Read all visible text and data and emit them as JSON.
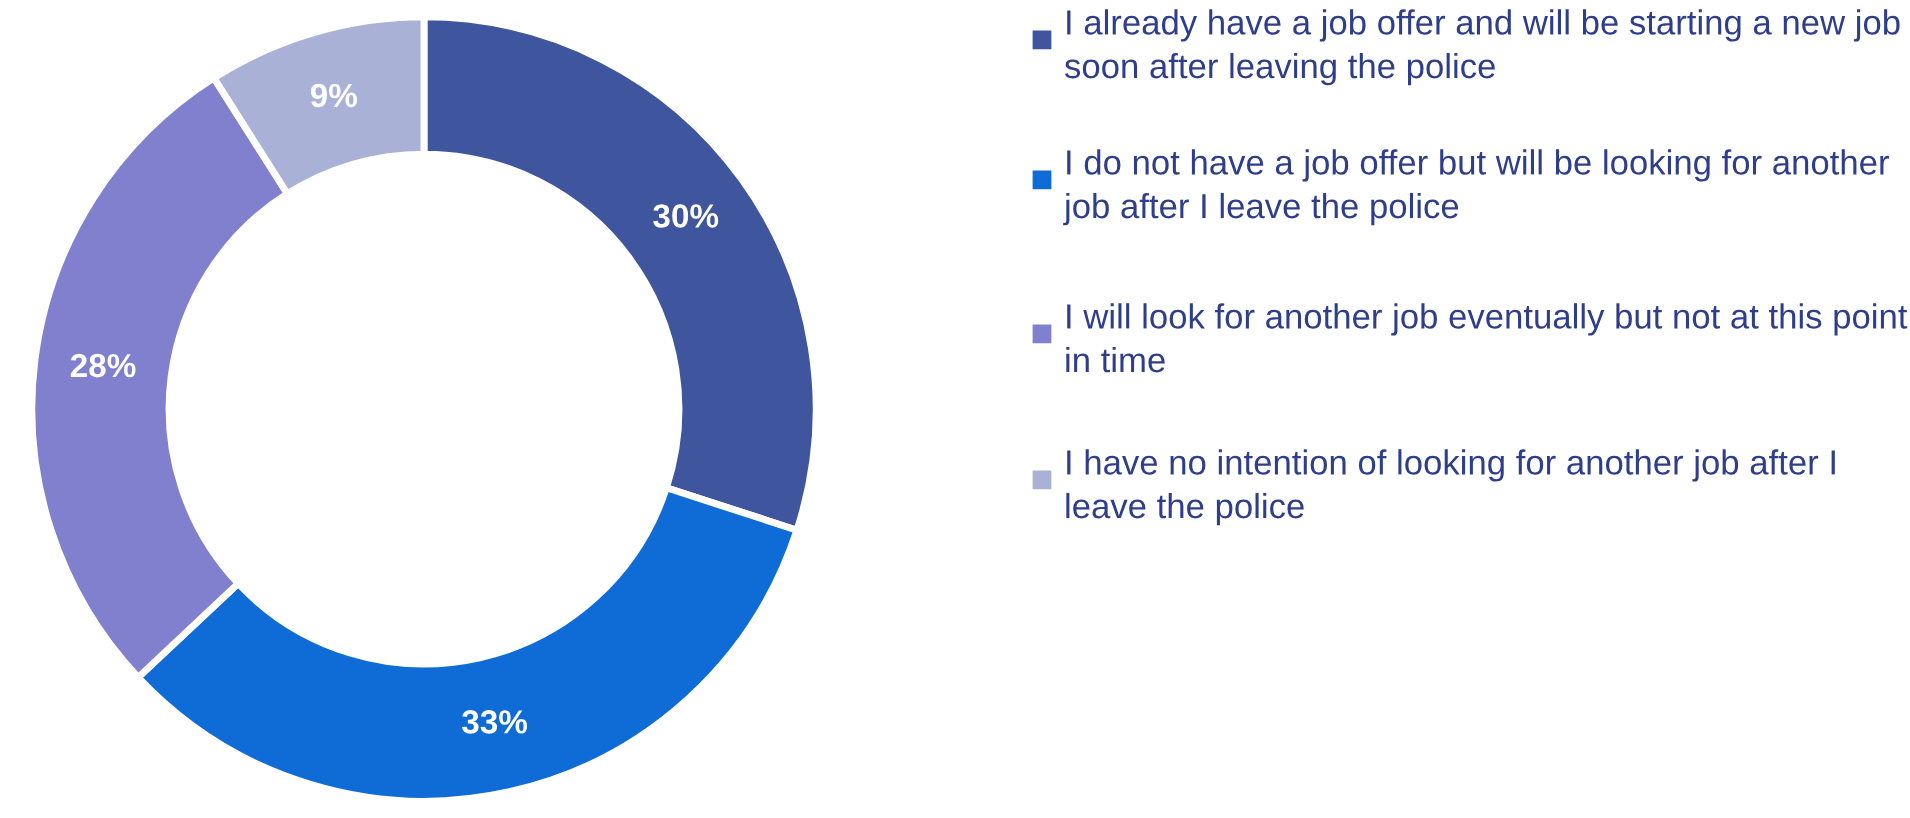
{
  "chart_data": {
    "type": "donut",
    "categories": [
      "I already have a job offer and will be starting a new job soon after leaving the police",
      "I do not have a job offer but will be looking for another job after I leave the police",
      "I will look for another job eventually but not at this point in time",
      "I have no intention of looking for another job after I leave the police"
    ],
    "values": [
      30,
      33,
      28,
      9
    ],
    "colors": [
      "#3f559e",
      "#0f6bd6",
      "#8080cf",
      "#a9b2d6"
    ],
    "value_labels": [
      "30%",
      "33%",
      "28%",
      "9%"
    ],
    "legend": "right"
  }
}
